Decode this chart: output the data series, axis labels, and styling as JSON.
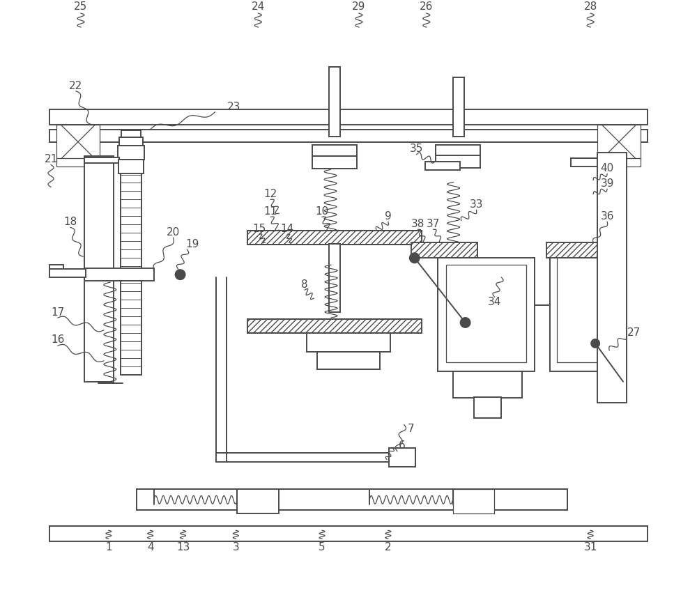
{
  "bg_color": "#ffffff",
  "line_color": "#4a4a4a",
  "lw": 1.4,
  "lw_thin": 0.9,
  "fig_width": 10.0,
  "fig_height": 8.77
}
